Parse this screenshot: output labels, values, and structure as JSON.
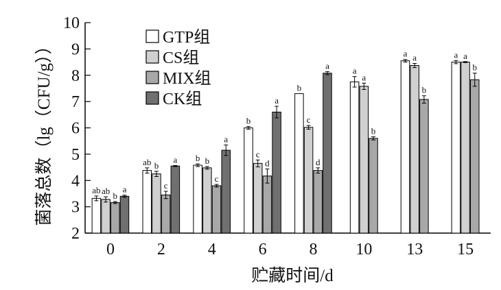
{
  "chart_data": {
    "type": "bar",
    "title": "",
    "xlabel": "贮藏时间/d",
    "ylabel": "菌落总数（lg（CFU/g））",
    "ylim": [
      2,
      10
    ],
    "yticks": [
      2,
      3,
      4,
      5,
      6,
      7,
      8,
      9,
      10
    ],
    "grid": false,
    "legend_position": "top-left",
    "categories": [
      "0",
      "2",
      "4",
      "6",
      "8",
      "10",
      "13",
      "15"
    ],
    "series": [
      {
        "name": "GTP组",
        "color": "#ffffff",
        "values": [
          3.32,
          4.38,
          4.58,
          6.0,
          7.3,
          7.75,
          8.55,
          8.5
        ],
        "errors": [
          0.09,
          0.1,
          0.05,
          0.05,
          0.0,
          0.2,
          0.05,
          0.06
        ],
        "labels": [
          "ab",
          "ab",
          "b",
          "b",
          "b",
          "a",
          "a",
          "a"
        ]
      },
      {
        "name": "CS组",
        "color": "#d0d0d0",
        "values": [
          3.28,
          4.25,
          4.48,
          4.65,
          6.02,
          7.58,
          8.37,
          8.5
        ],
        "errors": [
          0.1,
          0.1,
          0.05,
          0.13,
          0.07,
          0.12,
          0.08,
          0.02
        ],
        "labels": [
          "ab",
          "b",
          "b",
          "c",
          "c",
          "a",
          "a",
          "a"
        ]
      },
      {
        "name": "MIX组",
        "color": "#a8a8a8",
        "values": [
          3.16,
          3.45,
          3.8,
          4.17,
          4.38,
          5.6,
          7.08,
          7.83
        ],
        "errors": [
          0.04,
          0.14,
          0.05,
          0.27,
          0.1,
          0.06,
          0.14,
          0.25
        ],
        "labels": [
          "b",
          "c",
          "c",
          "d",
          "d",
          "b",
          "b",
          "b"
        ]
      },
      {
        "name": "CK组",
        "color": "#707070",
        "values": [
          3.4,
          4.55,
          5.15,
          6.6,
          8.08,
          null,
          null,
          null
        ],
        "errors": [
          0.04,
          0.02,
          0.2,
          0.22,
          0.06,
          null,
          null,
          null
        ],
        "labels": [
          "a",
          "a",
          "a",
          "a",
          "a",
          "",
          "",
          ""
        ]
      }
    ]
  }
}
